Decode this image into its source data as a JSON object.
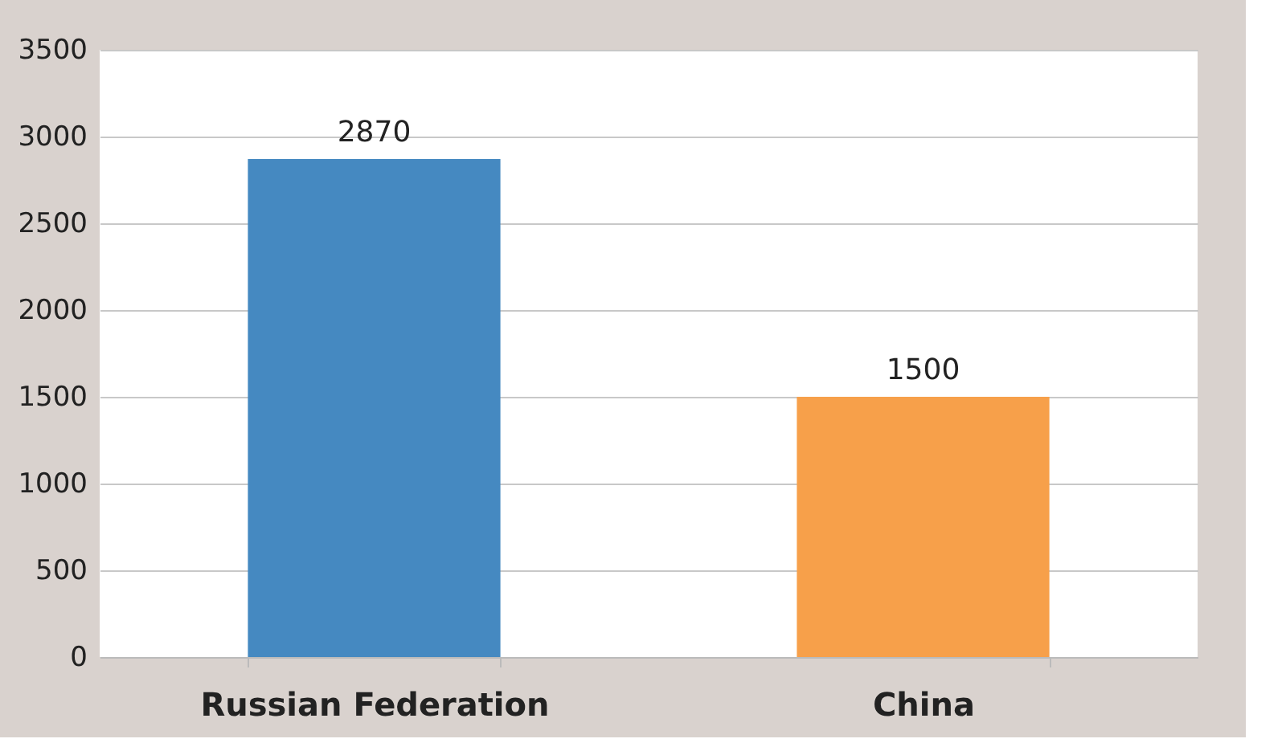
{
  "chart_data": {
    "type": "bar",
    "categories": [
      "Russian Federation",
      "China"
    ],
    "values": [
      2870,
      1500
    ],
    "colors": [
      "#4589c1",
      "#f7a04a"
    ],
    "ylim": [
      0,
      3500
    ],
    "yticks": [
      0,
      500,
      1000,
      1500,
      2000,
      2500,
      3000,
      3500
    ],
    "grid": "y",
    "data_labels": true
  }
}
